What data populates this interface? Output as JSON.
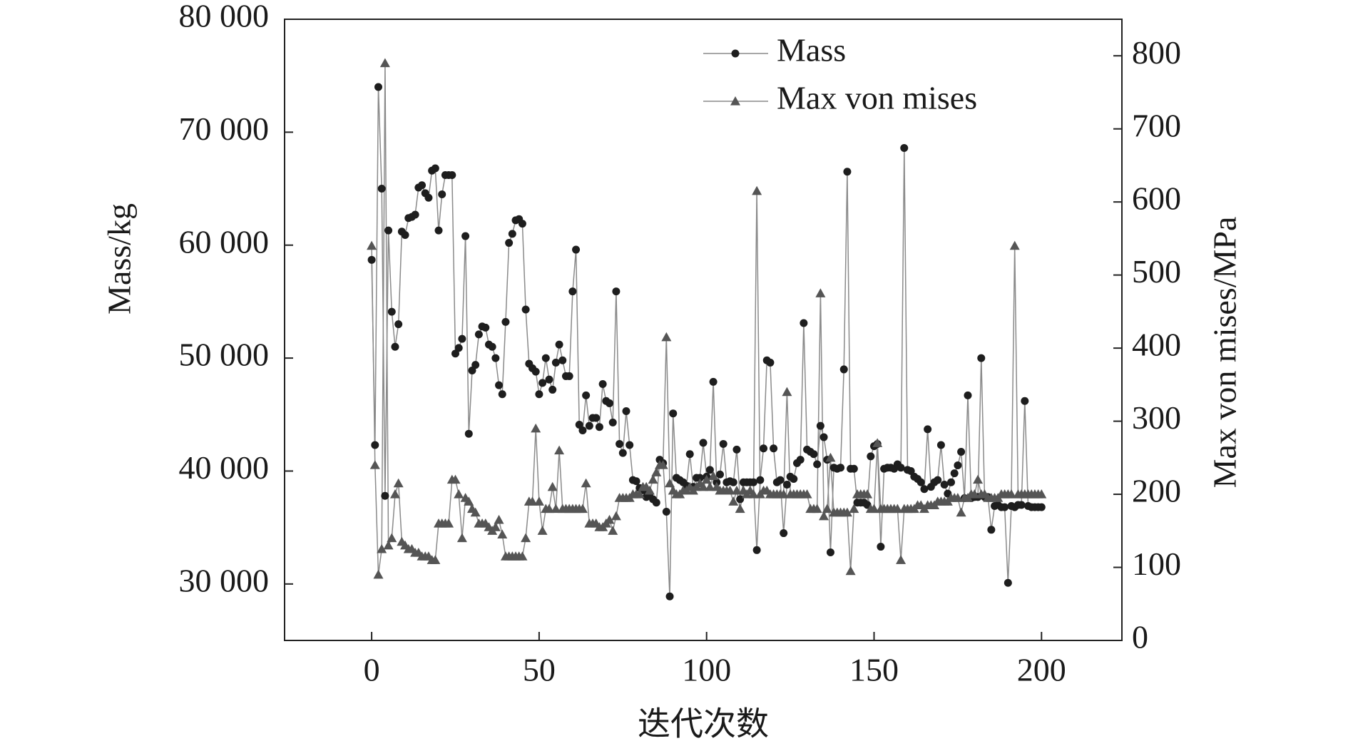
{
  "chart_data": {
    "type": "line",
    "xlabel": "迭代次数",
    "ylabel": "Mass/kg",
    "y2label": "Max von mises/MPa",
    "legend": "upper right",
    "grid": false,
    "xlim": [
      -26,
      224
    ],
    "xticks": [
      0,
      50,
      100,
      150,
      200
    ],
    "ylim": [
      25000,
      80000
    ],
    "yticks": [
      {
        "value": 30000,
        "label": "30 000"
      },
      {
        "value": 40000,
        "label": "40 000"
      },
      {
        "value": 50000,
        "label": "50 000"
      },
      {
        "value": 60000,
        "label": "60 000"
      },
      {
        "value": 70000,
        "label": "70 000"
      },
      {
        "value": 80000,
        "label": "80 000"
      }
    ],
    "y2lim": [
      0,
      850
    ],
    "y2ticks": [
      0,
      100,
      200,
      300,
      400,
      500,
      600,
      700,
      800
    ],
    "x": [
      0,
      1,
      2,
      3,
      4,
      5,
      6,
      7,
      8,
      9,
      10,
      11,
      12,
      13,
      14,
      15,
      16,
      17,
      18,
      19,
      20,
      21,
      22,
      23,
      24,
      25,
      26,
      27,
      28,
      29,
      30,
      31,
      32,
      33,
      34,
      35,
      36,
      37,
      38,
      39,
      40,
      41,
      42,
      43,
      44,
      45,
      46,
      47,
      48,
      49,
      50,
      51,
      52,
      53,
      54,
      55,
      56,
      57,
      58,
      59,
      60,
      61,
      62,
      63,
      64,
      65,
      66,
      67,
      68,
      69,
      70,
      71,
      72,
      73,
      74,
      75,
      76,
      77,
      78,
      79,
      80,
      81,
      82,
      83,
      84,
      85,
      86,
      87,
      88,
      89,
      90,
      91,
      92,
      93,
      94,
      95,
      96,
      97,
      98,
      99,
      100,
      101,
      102,
      103,
      104,
      105,
      106,
      107,
      108,
      109,
      110,
      111,
      112,
      113,
      114,
      115,
      116,
      117,
      118,
      119,
      120,
      121,
      122,
      123,
      124,
      125,
      126,
      127,
      128,
      129,
      130,
      131,
      132,
      133,
      134,
      135,
      136,
      137,
      138,
      139,
      140,
      141,
      142,
      143,
      144,
      145,
      146,
      147,
      148,
      149,
      150,
      151,
      152,
      153,
      154,
      155,
      156,
      157,
      158,
      159,
      160,
      161,
      162,
      163,
      164,
      165,
      166,
      167,
      168,
      169,
      170,
      171,
      172,
      173,
      174,
      175,
      176,
      177,
      178,
      179,
      180,
      181,
      182,
      183,
      184,
      185,
      186,
      187,
      188,
      189,
      190,
      191,
      192,
      193,
      194,
      195,
      196,
      197,
      198,
      199,
      200
    ],
    "series": [
      {
        "name": "Mass",
        "color": "#1e1e1e",
        "marker": "circle",
        "values": [
          58700,
          42300,
          74000,
          65000,
          37800,
          61300,
          54100,
          51000,
          53000,
          61200,
          60900,
          62400,
          62500,
          62700,
          65100,
          65300,
          64600,
          64200,
          66600,
          66800,
          61300,
          64500,
          66200,
          66200,
          66200,
          50400,
          50900,
          51700,
          60800,
          43300,
          48900,
          49400,
          52100,
          52800,
          52700,
          51200,
          51000,
          50000,
          47600,
          46800,
          53200,
          60200,
          61000,
          62200,
          62300,
          61900,
          54300,
          49500,
          49100,
          48800,
          46800,
          47800,
          50000,
          48100,
          47200,
          49600,
          51200,
          49800,
          48400,
          48400,
          55900,
          59600,
          44100,
          43600,
          46700,
          44000,
          44700,
          44700,
          43900,
          47700,
          46200,
          46000,
          44300,
          55900,
          42400,
          41600,
          45300,
          42300,
          39200,
          39100,
          38500,
          38300,
          37700,
          38000,
          37500,
          37200,
          41000,
          40700,
          36400,
          28900,
          45100,
          39400,
          39200,
          39000,
          38700,
          41500,
          38600,
          39400,
          39400,
          42500,
          39500,
          40100,
          47900,
          39000,
          39700,
          42400,
          39000,
          39100,
          39000,
          41900,
          37500,
          39000,
          39000,
          39000,
          39000,
          33000,
          39200,
          42000,
          49800,
          49600,
          42000,
          39000,
          39200,
          34500,
          38800,
          39500,
          39300,
          40700,
          41000,
          53100,
          41900,
          41700,
          41500,
          40600,
          44000,
          43000,
          41000,
          32800,
          40300,
          40200,
          40300,
          49000,
          66500,
          40200,
          40200,
          37200,
          37200,
          37200,
          37000,
          41300,
          42200,
          42400,
          33300,
          40200,
          40300,
          40300,
          40200,
          40600,
          40300,
          68600,
          40100,
          40000,
          39500,
          39300,
          39000,
          38400,
          43700,
          38600,
          39000,
          39200,
          42300,
          38800,
          38000,
          39000,
          39800,
          40500,
          41700,
          37600,
          46700,
          37600,
          37700,
          37700,
          50000,
          37700,
          37700,
          34800,
          36900,
          37000,
          36800,
          36800,
          30100,
          36900,
          36800,
          37000,
          37000,
          46200,
          36900,
          36800,
          36800,
          36800,
          36800
        ]
      },
      {
        "name": "Max von mises",
        "color": "#555555",
        "marker": "triangle",
        "axis": "y2",
        "values": [
          540,
          240,
          90,
          125,
          790,
          130,
          140,
          200,
          215,
          135,
          130,
          125,
          125,
          120,
          120,
          115,
          115,
          115,
          110,
          110,
          160,
          160,
          160,
          160,
          220,
          220,
          200,
          140,
          195,
          190,
          180,
          175,
          160,
          160,
          160,
          155,
          150,
          155,
          165,
          145,
          115,
          115,
          115,
          115,
          115,
          115,
          140,
          190,
          190,
          290,
          190,
          150,
          180,
          180,
          210,
          180,
          260,
          180,
          180,
          180,
          180,
          180,
          180,
          180,
          215,
          160,
          160,
          160,
          155,
          155,
          160,
          165,
          150,
          170,
          195,
          195,
          195,
          195,
          200,
          200,
          200,
          210,
          210,
          205,
          220,
          230,
          240,
          240,
          415,
          215,
          205,
          200,
          200,
          205,
          205,
          210,
          205,
          210,
          215,
          210,
          220,
          210,
          225,
          210,
          205,
          205,
          205,
          205,
          190,
          205,
          180,
          205,
          200,
          205,
          200,
          615,
          200,
          205,
          205,
          200,
          200,
          200,
          200,
          200,
          340,
          200,
          200,
          200,
          200,
          200,
          200,
          180,
          180,
          180,
          475,
          170,
          180,
          250,
          175,
          175,
          175,
          175,
          175,
          95,
          180,
          200,
          200,
          200,
          200,
          180,
          180,
          270,
          180,
          180,
          180,
          180,
          180,
          180,
          110,
          180,
          180,
          180,
          180,
          185,
          185,
          180,
          185,
          185,
          185,
          190,
          190,
          190,
          190,
          195,
          195,
          195,
          175,
          195,
          195,
          200,
          200,
          220,
          200,
          200,
          195,
          195,
          195,
          195,
          200,
          200,
          200,
          200,
          540,
          200,
          200,
          200,
          200,
          200,
          200,
          200,
          200
        ]
      }
    ]
  }
}
